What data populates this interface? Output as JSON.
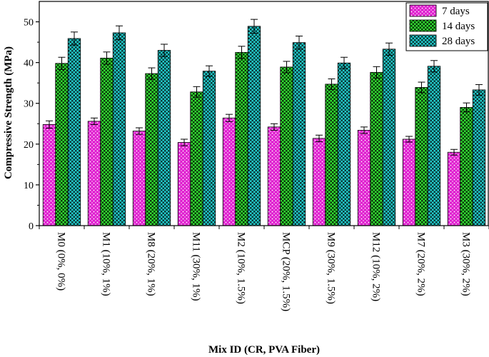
{
  "chart_data": {
    "type": "bar",
    "title": "",
    "xlabel": "Mix ID (CR, PVA Fiber)",
    "ylabel": "Compressive Strength (MPa)",
    "ylim": [
      0,
      55
    ],
    "yticks": [
      0,
      10,
      20,
      30,
      40,
      50
    ],
    "grid": false,
    "legend_position": "top-right",
    "categories": [
      "M0 (0%, 0%)",
      "M1 (10%, 1%)",
      "M8 (20%, 1%)",
      "M11 (30%, 1%)",
      "M2 (10%, 1.5%)",
      "MCP (20%, 1.5%)",
      "M9 (30%, 1.5%)",
      "M12 (10%, 2%)",
      "M7 (20%, 2%)",
      "M3 (30%, 2%)"
    ],
    "series": [
      {
        "name": "7 days",
        "color": "#e020d0",
        "values": [
          24.8,
          25.6,
          23.2,
          20.4,
          26.4,
          24.2,
          21.4,
          23.4,
          21.2,
          18.0
        ],
        "errors": [
          0.9,
          0.8,
          0.8,
          0.8,
          0.9,
          0.8,
          0.8,
          0.8,
          0.7,
          0.7
        ]
      },
      {
        "name": "14 days",
        "color": "#33dd33",
        "values": [
          39.8,
          41.1,
          37.3,
          32.8,
          42.5,
          38.9,
          34.7,
          37.6,
          33.9,
          29.0
        ],
        "errors": [
          1.5,
          1.5,
          1.4,
          1.3,
          1.5,
          1.4,
          1.3,
          1.4,
          1.3,
          1.1
        ]
      },
      {
        "name": "28 days",
        "color": "#22cccc",
        "values": [
          45.9,
          47.3,
          43.0,
          37.9,
          48.9,
          44.9,
          39.9,
          43.3,
          39.1,
          33.3
        ],
        "errors": [
          1.6,
          1.7,
          1.5,
          1.3,
          1.7,
          1.6,
          1.4,
          1.5,
          1.4,
          1.3
        ]
      }
    ]
  }
}
